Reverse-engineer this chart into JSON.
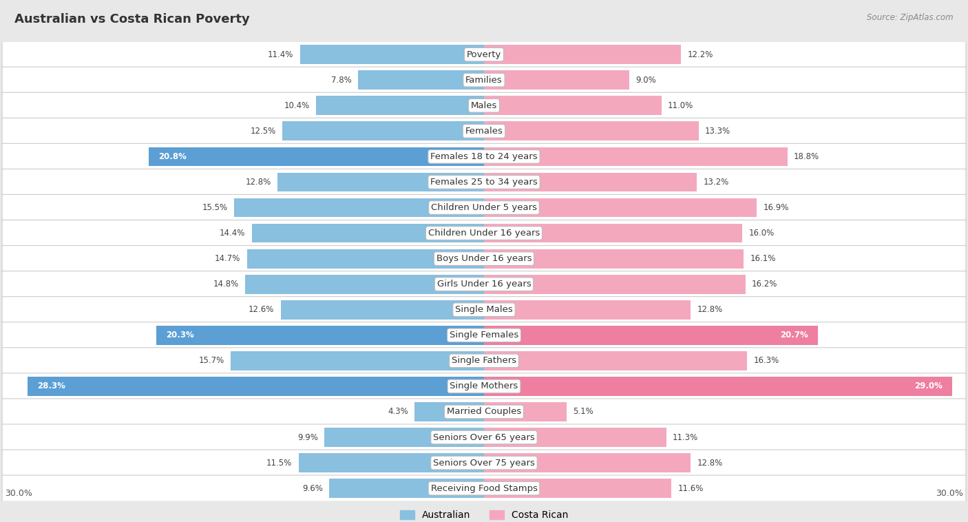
{
  "title": "Australian vs Costa Rican Poverty",
  "source": "Source: ZipAtlas.com",
  "categories": [
    "Poverty",
    "Families",
    "Males",
    "Females",
    "Females 18 to 24 years",
    "Females 25 to 34 years",
    "Children Under 5 years",
    "Children Under 16 years",
    "Boys Under 16 years",
    "Girls Under 16 years",
    "Single Males",
    "Single Females",
    "Single Fathers",
    "Single Mothers",
    "Married Couples",
    "Seniors Over 65 years",
    "Seniors Over 75 years",
    "Receiving Food Stamps"
  ],
  "australian": [
    11.4,
    7.8,
    10.4,
    12.5,
    20.8,
    12.8,
    15.5,
    14.4,
    14.7,
    14.8,
    12.6,
    20.3,
    15.7,
    28.3,
    4.3,
    9.9,
    11.5,
    9.6
  ],
  "costa_rican": [
    12.2,
    9.0,
    11.0,
    13.3,
    18.8,
    13.2,
    16.9,
    16.0,
    16.1,
    16.2,
    12.8,
    20.7,
    16.3,
    29.0,
    5.1,
    11.3,
    12.8,
    11.6
  ],
  "australian_color": "#89bfdf",
  "costa_rican_color": "#f4a8be",
  "australian_color_highlight": "#5b9fd4",
  "costa_rican_color_highlight": "#ee7fa0",
  "background_color": "#e8e8e8",
  "row_bg_color": "#ffffff",
  "max_value": 30.0,
  "title_fontsize": 13,
  "label_fontsize": 9.5,
  "value_fontsize": 8.5
}
